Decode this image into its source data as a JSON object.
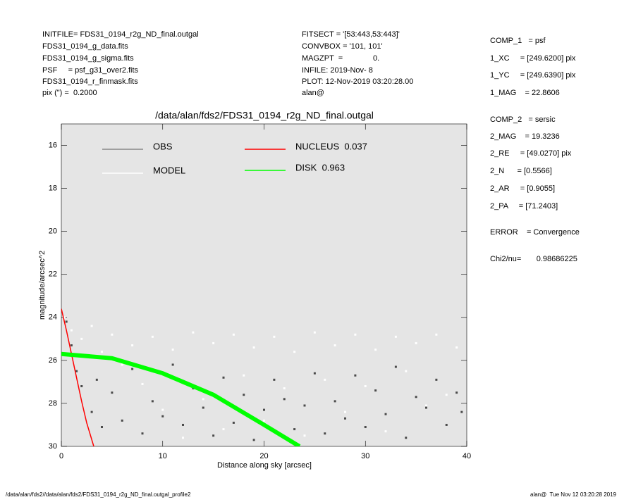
{
  "chart_data": {
    "type": "scatter",
    "title": "/data/alan/fds2/FDS31_0194_r2g_ND_final.outgal",
    "x_label": "Distance along sky [arcsec]",
    "y_label": "magnitude/arcsec^2",
    "xlim": [
      0,
      40
    ],
    "xticks": [
      0,
      10,
      20,
      30,
      40
    ],
    "ylim": [
      30,
      15
    ],
    "yticks": [
      16,
      18,
      20,
      22,
      24,
      26,
      28,
      30
    ],
    "background": "#e5e5e5",
    "info_left": [
      "INITFILE= FDS31_0194_r2g_ND_final.outgal",
      "FDS31_0194_g_data.fits",
      "FDS31_0194_g_sigma.fits",
      "PSF     = psf_g31_over2.fits",
      "FDS31_0194_r_finmask.fits",
      "pix (\") =  0.2000"
    ],
    "info_middle": [
      "FITSECT = '[53:443,53:443]'",
      "CONVBOX = '101, 101'",
      "MAGZPT  =              0.",
      "INFILE: 2019-Nov- 8",
      "PLOT: 12-Nov-2019 03:20:28.00",
      "alan@"
    ],
    "info_right": [
      "COMP_1   = psf",
      "1_XC     = [249.6200] pix",
      "1_YC     = [249.6390] pix",
      "1_MAG    = 22.8606",
      "COMP_2   = sersic",
      "2_MAG    = 19.3236",
      "2_RE     = [49.0270] pix",
      "2_N      = [0.5566]",
      "2_AR     = [0.9055]",
      "2_PA     = [71.2403]",
      "ERROR    = Convergence",
      "Chi2/nu=       0.98686225"
    ],
    "footer_left": "/data/alan/fds2//data/alan/fds2/FDS31_0194_r2g_ND_final.outgal_profile2",
    "footer_right": "alan@  Tue Nov 12 03:20:28 2019",
    "series": [
      {
        "name": "OBS",
        "color": "#4a4a4a",
        "style": "points",
        "x": [
          0.5,
          1,
          1.5,
          2,
          2.5,
          3,
          3.5,
          4,
          5,
          6,
          7,
          8,
          9,
          10,
          11,
          12,
          13,
          14,
          15,
          16,
          17,
          18,
          19,
          20,
          21,
          22,
          23,
          24,
          25,
          26,
          27,
          28,
          29,
          30,
          31,
          32,
          33,
          34,
          35,
          36,
          37,
          38,
          39,
          39.5
        ],
        "values": [
          24.2,
          25.3,
          26.5,
          27.2,
          25.8,
          28.4,
          26.9,
          29.1,
          27.5,
          28.8,
          26.4,
          29.4,
          27.9,
          28.6,
          26.2,
          29.0,
          27.3,
          28.2,
          29.5,
          26.8,
          28.9,
          27.6,
          29.7,
          28.3,
          26.9,
          27.8,
          29.2,
          28.1,
          26.6,
          29.4,
          27.9,
          28.7,
          26.7,
          29.1,
          27.4,
          28.5,
          26.3,
          29.6,
          27.7,
          28.2,
          26.9,
          29.0,
          27.5,
          28.4
        ]
      },
      {
        "name": "MODEL",
        "color": "#ffffff",
        "style": "points",
        "x": [
          0.3,
          1,
          2,
          3,
          4,
          5,
          6,
          7,
          8,
          9,
          10,
          11,
          12,
          13,
          14,
          15,
          16,
          17,
          18,
          19,
          20,
          21,
          22,
          23,
          24,
          25,
          26,
          27,
          28,
          29,
          30,
          31,
          32,
          33,
          34,
          35,
          36,
          37,
          38,
          39
        ],
        "values": [
          24.0,
          24.6,
          25.0,
          24.4,
          25.6,
          24.8,
          26.2,
          25.3,
          27.1,
          24.9,
          28.3,
          25.5,
          29.6,
          24.7,
          27.8,
          25.2,
          29.2,
          24.8,
          26.7,
          25.4,
          28.8,
          24.9,
          27.3,
          25.6,
          29.5,
          24.7,
          26.9,
          25.3,
          28.4,
          24.8,
          27.2,
          25.5,
          29.3,
          24.9,
          26.5,
          25.2,
          28.1,
          24.8,
          27.6,
          25.4
        ]
      },
      {
        "name": "NUCLEUS  0.037",
        "color": "#ff0000",
        "style": "line",
        "x": [
          0,
          0.5,
          1,
          1.5,
          2,
          2.5,
          3.2
        ],
        "values": [
          23.6,
          24.6,
          25.7,
          26.8,
          27.9,
          28.9,
          30
        ]
      },
      {
        "name": "DISK  0.963",
        "color": "#00ff00",
        "style": "band",
        "x": [
          0,
          5,
          10,
          15,
          20,
          23.5
        ],
        "values": [
          25.7,
          25.9,
          26.6,
          27.6,
          29.0,
          30
        ]
      }
    ]
  }
}
